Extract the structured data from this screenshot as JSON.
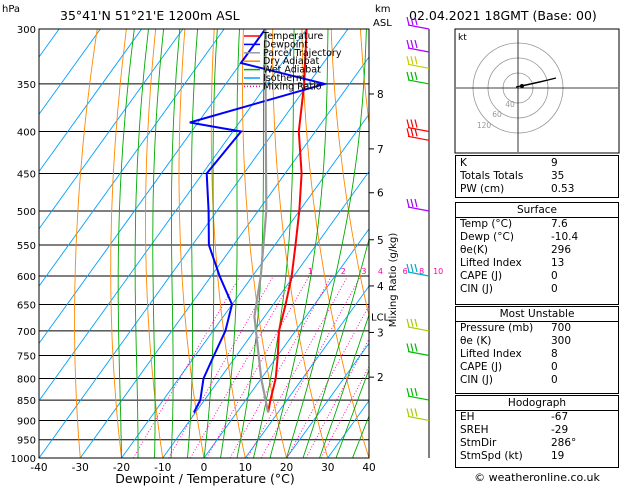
{
  "header": {
    "pressure_unit": "hPa",
    "location": "35°41'N  51°21'E  1200m  ASL",
    "height_unit_line1": "km",
    "height_unit_line2": "ASL",
    "datetime": "02.04.2021  18GMT  (Base: 00)"
  },
  "hodograph": {
    "unit": "kt",
    "ring_labels": [
      "40",
      "60",
      "120"
    ]
  },
  "footer": {
    "copyright": "© weatheronline.co.uk"
  },
  "indices": {
    "basic": [
      {
        "label": "K",
        "value": "9"
      },
      {
        "label": "Totals Totals",
        "value": "35"
      },
      {
        "label": "PW (cm)",
        "value": "0.53"
      }
    ],
    "surface": {
      "title": "Surface",
      "rows": [
        {
          "label": "Temp (°C)",
          "value": "7.6"
        },
        {
          "label": "Dewp (°C)",
          "value": "-10.4"
        },
        {
          "label": "θe(K)",
          "value": "296"
        },
        {
          "label": "Lifted Index",
          "value": "13"
        },
        {
          "label": "CAPE (J)",
          "value": "0"
        },
        {
          "label": "CIN (J)",
          "value": "0"
        }
      ]
    },
    "most_unstable": {
      "title": "Most Unstable",
      "rows": [
        {
          "label": "Pressure (mb)",
          "value": "700"
        },
        {
          "label": "θe (K)",
          "value": "300"
        },
        {
          "label": "Lifted Index",
          "value": "8"
        },
        {
          "label": "CAPE (J)",
          "value": "0"
        },
        {
          "label": "CIN (J)",
          "value": "0"
        }
      ]
    },
    "hodograph_box": {
      "title": "Hodograph",
      "rows": [
        {
          "label": "EH",
          "value": "-67"
        },
        {
          "label": "SREH",
          "value": "-29"
        },
        {
          "label": "StmDir",
          "value": "286°"
        },
        {
          "label": "StmSpd (kt)",
          "value": "19"
        }
      ]
    }
  },
  "chart_data": {
    "type": "line",
    "subtype": "skew-t log-p",
    "xlabel": "Dewpoint / Temperature (°C)",
    "ylabel_right": "Mixing Ratio (g/kg)",
    "x_ticks": [
      -40,
      -30,
      -20,
      -10,
      0,
      10,
      20,
      30,
      40
    ],
    "pressure_levels": [
      300,
      350,
      400,
      450,
      500,
      550,
      600,
      650,
      700,
      750,
      800,
      850,
      900,
      950,
      1000
    ],
    "xlim": [
      -40,
      40
    ],
    "ylim": [
      1000,
      300
    ],
    "y_scale": "log",
    "km_ticks": [
      {
        "label": "8",
        "p": 360
      },
      {
        "label": "7",
        "p": 420
      },
      {
        "label": "6",
        "p": 475
      },
      {
        "label": "5",
        "p": 542
      },
      {
        "label": "4",
        "p": 617
      },
      {
        "label": "3",
        "p": 703
      },
      {
        "label": "2",
        "p": 797
      }
    ],
    "lcl": {
      "label": "LCL",
      "p": 672
    },
    "mixing_ratio_labels": [
      {
        "label": "1",
        "t": -6
      },
      {
        "label": "2",
        "t": 2
      },
      {
        "label": "3",
        "t": 7
      },
      {
        "label": "4",
        "t": 11
      },
      {
        "label": "6",
        "t": 17
      },
      {
        "label": "8",
        "t": 21
      },
      {
        "label": "10",
        "t": 25
      },
      {
        "label": "15",
        "t": 31
      },
      {
        "label": "20",
        "t": 35
      },
      {
        "label": "25",
        "t": 38
      }
    ],
    "legend": {
      "placement": "top-left",
      "entries": [
        {
          "name": "Temperature",
          "color": "#ff0000"
        },
        {
          "name": "Dewpoint",
          "color": "#0000ff"
        },
        {
          "name": "Parcel Trajectory",
          "color": "#999999"
        },
        {
          "name": "Dry Adiabat",
          "color": "#ff8800"
        },
        {
          "name": "Wet Adiabat",
          "color": "#00aa00"
        },
        {
          "name": "Isotherm",
          "color": "#00a0ff"
        },
        {
          "name": "Mixing Ratio",
          "color": "#ff00aa"
        }
      ]
    },
    "series": [
      {
        "name": "Temperature",
        "color": "#ff0000",
        "points": [
          {
            "p": 880,
            "t": 7.6
          },
          {
            "p": 850,
            "t": 6
          },
          {
            "p": 800,
            "t": 3.5
          },
          {
            "p": 750,
            "t": 0
          },
          {
            "p": 700,
            "t": -4
          },
          {
            "p": 650,
            "t": -7
          },
          {
            "p": 600,
            "t": -10.5
          },
          {
            "p": 550,
            "t": -15
          },
          {
            "p": 500,
            "t": -20
          },
          {
            "p": 450,
            "t": -26
          },
          {
            "p": 400,
            "t": -34
          },
          {
            "p": 350,
            "t": -41
          },
          {
            "p": 300,
            "t": -50
          }
        ]
      },
      {
        "name": "Dewpoint",
        "color": "#0000ff",
        "points": [
          {
            "p": 880,
            "t": -10.4
          },
          {
            "p": 850,
            "t": -11
          },
          {
            "p": 800,
            "t": -14
          },
          {
            "p": 750,
            "t": -15.5
          },
          {
            "p": 700,
            "t": -17
          },
          {
            "p": 650,
            "t": -20
          },
          {
            "p": 600,
            "t": -28
          },
          {
            "p": 550,
            "t": -36
          },
          {
            "p": 500,
            "t": -42
          },
          {
            "p": 450,
            "t": -49
          },
          {
            "p": 400,
            "t": -48
          },
          {
            "p": 390,
            "t": -62
          },
          {
            "p": 350,
            "t": -36
          },
          {
            "p": 330,
            "t": -60
          },
          {
            "p": 300,
            "t": -60
          }
        ]
      },
      {
        "name": "Parcel Trajectory",
        "color": "#999999",
        "points": [
          {
            "p": 880,
            "t": 7.6
          },
          {
            "p": 800,
            "t": 0
          },
          {
            "p": 672,
            "t": -12.5
          },
          {
            "p": 600,
            "t": -18
          },
          {
            "p": 500,
            "t": -28
          },
          {
            "p": 400,
            "t": -42
          },
          {
            "p": 300,
            "t": -60
          }
        ]
      }
    ],
    "wind_barbs": [
      {
        "p": 300,
        "color": "#aa00ff"
      },
      {
        "p": 320,
        "color": "#aa00ff"
      },
      {
        "p": 335,
        "color": "#cccc00"
      },
      {
        "p": 350,
        "color": "#00bb00"
      },
      {
        "p": 400,
        "color": "#ff0000"
      },
      {
        "p": 410,
        "color": "#ff0000"
      },
      {
        "p": 500,
        "color": "#aa00ff"
      },
      {
        "p": 600,
        "color": "#00aacc"
      },
      {
        "p": 700,
        "color": "#aacc00"
      },
      {
        "p": 750,
        "color": "#00bb00"
      },
      {
        "p": 850,
        "color": "#00bb00"
      },
      {
        "p": 900,
        "color": "#aacc00"
      }
    ]
  }
}
